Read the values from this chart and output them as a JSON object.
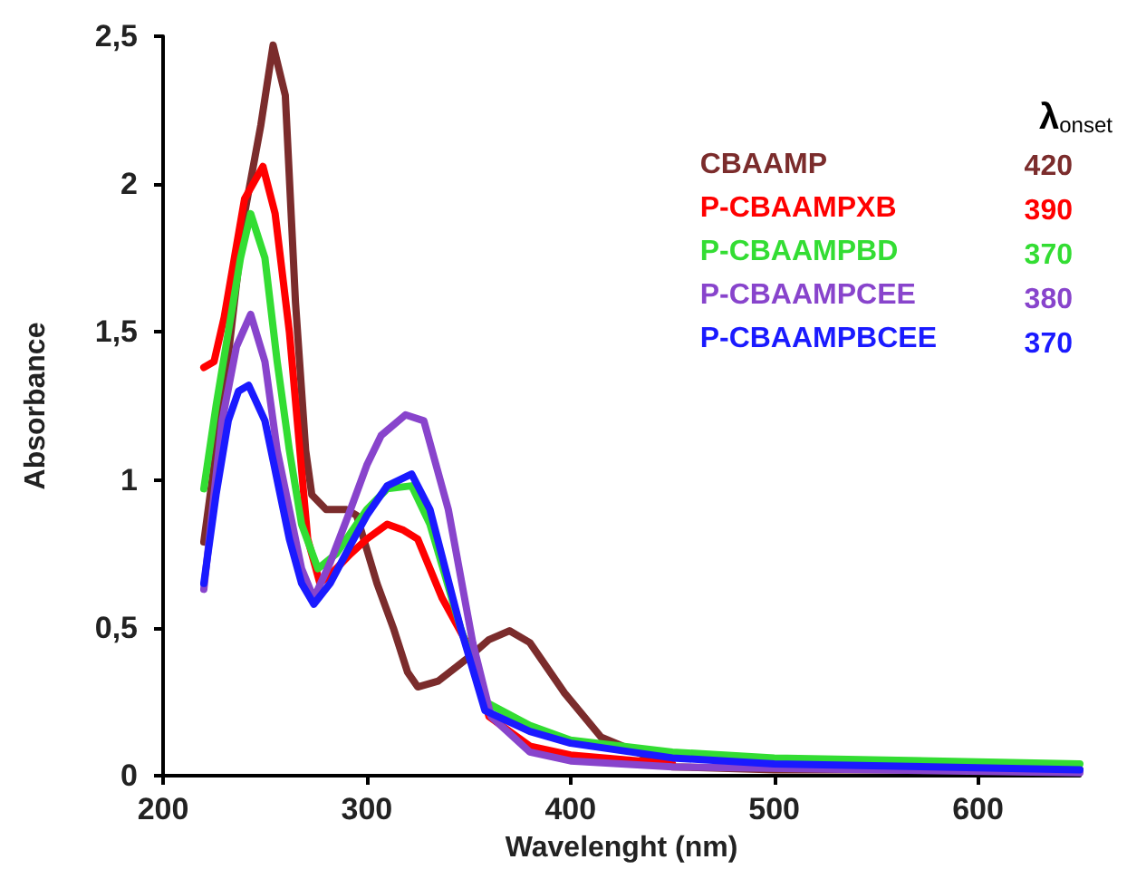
{
  "chart_data": {
    "type": "line",
    "xlabel": "Wavelenght (nm)",
    "ylabel": "Absorbance",
    "xlim": [
      200,
      650
    ],
    "xticks": [
      200,
      300,
      400,
      500,
      600
    ],
    "ylim": [
      0,
      2.5
    ],
    "yticks": [
      0,
      {
        "value": 0.5,
        "label": "0,5"
      },
      1,
      {
        "value": 1.5,
        "label": "1,5"
      },
      2,
      {
        "value": 2.5,
        "label": "2,5"
      }
    ],
    "grid": false,
    "legend": "top right",
    "marker": "none",
    "line_style": "solid",
    "annotations": [
      "λ$_{onset}$",
      "420",
      "390",
      "370",
      "380",
      "370"
    ],
    "series": [
      {
        "name": "CBAAMP",
        "color": "#7b2c2c",
        "x": [
          220,
          230,
          240,
          248,
          254,
          260,
          265,
          270,
          273,
          280,
          290,
          295,
          305,
          313,
          320,
          325,
          335,
          350,
          360,
          370,
          380,
          397,
          415,
          450,
          500,
          650
        ],
        "values": [
          0.79,
          1.3,
          1.9,
          2.2,
          2.47,
          2.3,
          1.6,
          1.1,
          0.95,
          0.9,
          0.9,
          0.88,
          0.65,
          0.5,
          0.35,
          0.3,
          0.32,
          0.4,
          0.46,
          0.49,
          0.45,
          0.28,
          0.13,
          0.03,
          0.02,
          0.02
        ]
      },
      {
        "name": "P-CBAAMPXB",
        "color": "#ff0000",
        "x": [
          220,
          225,
          230,
          235,
          240,
          249,
          255,
          262,
          271,
          277,
          285,
          292,
          300,
          310,
          318,
          325,
          337,
          349,
          360,
          380,
          400,
          450
        ],
        "values": [
          1.38,
          1.4,
          1.55,
          1.75,
          1.95,
          2.06,
          1.9,
          1.5,
          0.8,
          0.65,
          0.7,
          0.75,
          0.8,
          0.85,
          0.83,
          0.8,
          0.6,
          0.45,
          0.2,
          0.1,
          0.07,
          0.04
        ]
      },
      {
        "name": "P-CBAAMPBD",
        "color": "#33dd33",
        "x": [
          220,
          226,
          232,
          238,
          243,
          250,
          256,
          262,
          268,
          276,
          285,
          292,
          300,
          310,
          322,
          331,
          346,
          358,
          380,
          400,
          450,
          500,
          650
        ],
        "values": [
          0.97,
          1.25,
          1.5,
          1.75,
          1.9,
          1.75,
          1.4,
          1.1,
          0.85,
          0.7,
          0.75,
          0.82,
          0.9,
          0.97,
          0.98,
          0.85,
          0.5,
          0.25,
          0.17,
          0.12,
          0.08,
          0.06,
          0.04
        ]
      },
      {
        "name": "P-CBAAMPCEE",
        "color": "#8844cc",
        "x": [
          220,
          225,
          229,
          236,
          243,
          250,
          256,
          262,
          268,
          274,
          282,
          292,
          300,
          307,
          319,
          328,
          340,
          352,
          361,
          380,
          400,
          450,
          650
        ],
        "values": [
          0.63,
          0.95,
          1.2,
          1.45,
          1.56,
          1.4,
          1.1,
          0.9,
          0.7,
          0.6,
          0.72,
          0.9,
          1.05,
          1.15,
          1.22,
          1.2,
          0.9,
          0.45,
          0.2,
          0.08,
          0.05,
          0.03,
          0.01
        ]
      },
      {
        "name": "P-CBAAMPBCEE",
        "color": "#1a1aff",
        "x": [
          220,
          226,
          232,
          237,
          242,
          250,
          256,
          262,
          268,
          274,
          282,
          292,
          300,
          310,
          322,
          331,
          346,
          358,
          380,
          400,
          450,
          500,
          650
        ],
        "values": [
          0.65,
          0.95,
          1.2,
          1.3,
          1.32,
          1.2,
          1.0,
          0.8,
          0.65,
          0.58,
          0.65,
          0.78,
          0.88,
          0.98,
          1.02,
          0.9,
          0.5,
          0.22,
          0.15,
          0.11,
          0.06,
          0.04,
          0.02
        ]
      }
    ]
  }
}
